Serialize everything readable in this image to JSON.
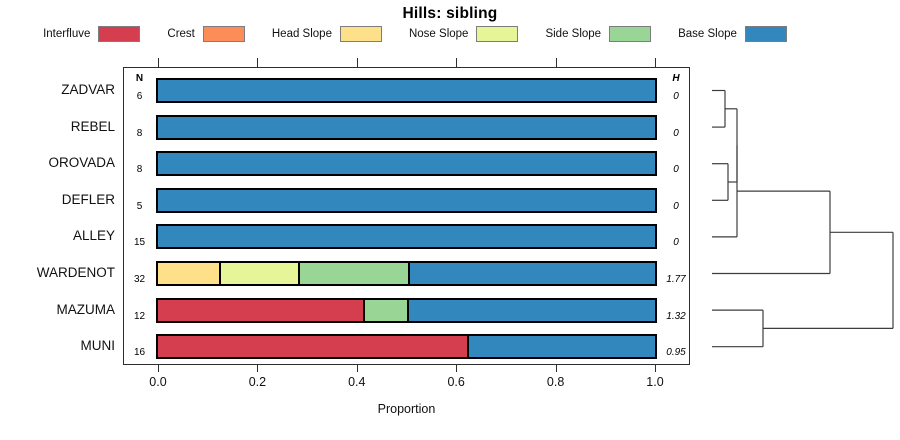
{
  "title": "Hills: sibling",
  "legend": {
    "items": [
      {
        "label": "Interfluve",
        "color": "#d53e4f"
      },
      {
        "label": "Crest",
        "color": "#fc8d59"
      },
      {
        "label": "Head Slope",
        "color": "#fee08b"
      },
      {
        "label": "Nose Slope",
        "color": "#e6f598"
      },
      {
        "label": "Side Slope",
        "color": "#99d594"
      },
      {
        "label": "Base Slope",
        "color": "#3288bd"
      }
    ]
  },
  "chart_data": {
    "type": "bar",
    "orientation": "horizontal-stacked",
    "title": "Hills: sibling",
    "xlabel": "Proportion",
    "xlim": [
      0,
      1
    ],
    "x_ticks": [
      0,
      0.2,
      0.4,
      0.6,
      0.8,
      1.0
    ],
    "x_tick_labels": [
      "0.0",
      "0.2",
      "0.4",
      "0.6",
      "0.8",
      "1.0"
    ],
    "grid": false,
    "legend_position": "top",
    "categories": [
      "Interfluve",
      "Crest",
      "Head Slope",
      "Nose Slope",
      "Side Slope",
      "Base Slope"
    ],
    "n_header": "N",
    "h_header": "H",
    "rows": [
      {
        "label": "ZADVAR",
        "n": "6",
        "h": "0",
        "segments": [
          {
            "category": "Base Slope",
            "value": 1.0
          }
        ]
      },
      {
        "label": "REBEL",
        "n": "8",
        "h": "0",
        "segments": [
          {
            "category": "Base Slope",
            "value": 1.0
          }
        ]
      },
      {
        "label": "OROVADA",
        "n": "8",
        "h": "0",
        "segments": [
          {
            "category": "Base Slope",
            "value": 1.0
          }
        ]
      },
      {
        "label": "DEFLER",
        "n": "5",
        "h": "0",
        "segments": [
          {
            "category": "Base Slope",
            "value": 1.0
          }
        ]
      },
      {
        "label": "ALLEY",
        "n": "15",
        "h": "0",
        "segments": [
          {
            "category": "Base Slope",
            "value": 1.0
          }
        ]
      },
      {
        "label": "WARDENOT",
        "n": "32",
        "h": "1.77",
        "segments": [
          {
            "category": "Head Slope",
            "value": 0.125
          },
          {
            "category": "Nose Slope",
            "value": 0.15625
          },
          {
            "category": "Side Slope",
            "value": 0.21875
          },
          {
            "category": "Base Slope",
            "value": 0.5
          }
        ]
      },
      {
        "label": "MAZUMA",
        "n": "12",
        "h": "1.32",
        "segments": [
          {
            "category": "Interfluve",
            "value": 0.4167
          },
          {
            "category": "Side Slope",
            "value": 0.0833
          },
          {
            "category": "Base Slope",
            "value": 0.5
          }
        ]
      },
      {
        "label": "MUNI",
        "n": "16",
        "h": "0.95",
        "segments": [
          {
            "category": "Interfluve",
            "value": 0.625
          },
          {
            "category": "Base Slope",
            "value": 0.375
          }
        ]
      }
    ]
  },
  "dendrogram": {
    "leaf_x": 712,
    "tree": {
      "x": 893,
      "children": [
        {
          "x": 830,
          "children": [
            {
              "x": 737,
              "children": [
                {
                  "x": 737,
                  "children": [
                    {
                      "x": 725,
                      "children": [
                        {
                          "leaf": "ZADVAR"
                        },
                        {
                          "leaf": "REBEL"
                        }
                      ]
                    },
                    {
                      "x": 728,
                      "children": [
                        {
                          "leaf": "OROVADA"
                        },
                        {
                          "leaf": "DEFLER"
                        }
                      ]
                    }
                  ]
                },
                {
                  "leaf": "ALLEY"
                }
              ]
            },
            {
              "leaf": "WARDENOT"
            }
          ]
        },
        {
          "x": 763,
          "children": [
            {
              "leaf": "MAZUMA"
            },
            {
              "leaf": "MUNI"
            }
          ]
        }
      ]
    }
  },
  "colors": {
    "bar_outline": "#000000",
    "axis": "#2e2e2e",
    "dendrogram_line": "#3d3d3d"
  }
}
